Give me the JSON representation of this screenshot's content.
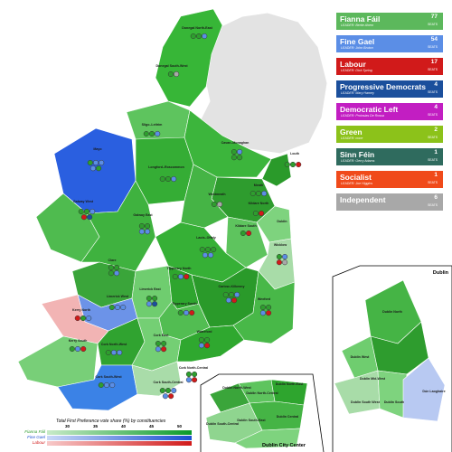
{
  "legend": [
    {
      "name": "Fianna Fáil",
      "leader": "LEADER: Bertie Ahern",
      "seats": "77",
      "seats_label": "SEATS",
      "color": "#5cb85c"
    },
    {
      "name": "Fine Gael",
      "leader": "LEADER: John Bruton",
      "seats": "54",
      "seats_label": "SEATS",
      "color": "#5b8ee6"
    },
    {
      "name": "Labour",
      "leader": "LEADER: Dick Spring",
      "seats": "17",
      "seats_label": "SEATS",
      "color": "#d11a1a"
    },
    {
      "name": "Progressive Democrats",
      "leader": "LEADER: Mary Harney",
      "seats": "4",
      "seats_label": "SEATS",
      "color": "#1b4f9c"
    },
    {
      "name": "Democratic Left",
      "leader": "LEADER: Proinsias De Rossa",
      "seats": "4",
      "seats_label": "SEATS",
      "color": "#c21ec2"
    },
    {
      "name": "Green",
      "leader": "LEADER: none",
      "seats": "2",
      "seats_label": "SEATS",
      "color": "#8cc21a"
    },
    {
      "name": "Sinn Féin",
      "leader": "LEADER: Gerry Adams",
      "seats": "1",
      "seats_label": "SEATS",
      "color": "#2f6b5e"
    },
    {
      "name": "Socialist",
      "leader": "LEADER: Joe Higgins",
      "seats": "1",
      "seats_label": "SEATS",
      "color": "#f04a1a"
    },
    {
      "name": "Independent",
      "leader": "",
      "seats": "6",
      "seats_label": "SEATS",
      "color": "#a8a8a8"
    }
  ],
  "constituency_labels": [
    "Donegal North-East",
    "Donegal South-West",
    "Sligo–Leitrim",
    "Cavan–Monaghan",
    "Louth",
    "Mayo",
    "Longford–Roscommon",
    "Meath",
    "Westmeath",
    "Galway East",
    "Galway West",
    "Kildare North",
    "Kildare South",
    "Dublin",
    "Laois–Offaly",
    "Wicklow",
    "Clare",
    "Limerick West",
    "Limerick East",
    "Tipperary North",
    "Tipperary South",
    "Carlow–Kilkenny",
    "Wexford",
    "Kerry North",
    "Kerry South",
    "Cork North-West",
    "Cork East",
    "Waterford",
    "Cork North-Central",
    "Cork South-Central",
    "Cork South-West"
  ],
  "dublin_inset": {
    "title": "Dublin",
    "labels": [
      "Dublin North",
      "Dublin West",
      "Dublin Mid-West",
      "Dublin South West",
      "Dublin South",
      "Dún Laoghaire"
    ]
  },
  "dublin_city_inset": {
    "title": "Dublin City Center",
    "labels": [
      "Dublin North-West",
      "Dublin North-Central",
      "Dublin North-East",
      "Dublin Central",
      "Dublin South-Central",
      "Dublin South-East"
    ]
  },
  "vote_share_scale": {
    "title": "Total First Preference vote share (%) by constituencies",
    "ticks": [
      "30",
      "35",
      "40",
      "45",
      "50"
    ],
    "rows": [
      {
        "label": "Fianna Fáil",
        "color_low": "#c8eac8",
        "color_high": "#0a9a2a"
      },
      {
        "label": "Fine Gael",
        "color_low": "#c9d8f7",
        "color_high": "#1a4fd1"
      },
      {
        "label": "Labour",
        "color_low": "#f7c9c9",
        "color_high": "#d11a1a"
      }
    ]
  }
}
